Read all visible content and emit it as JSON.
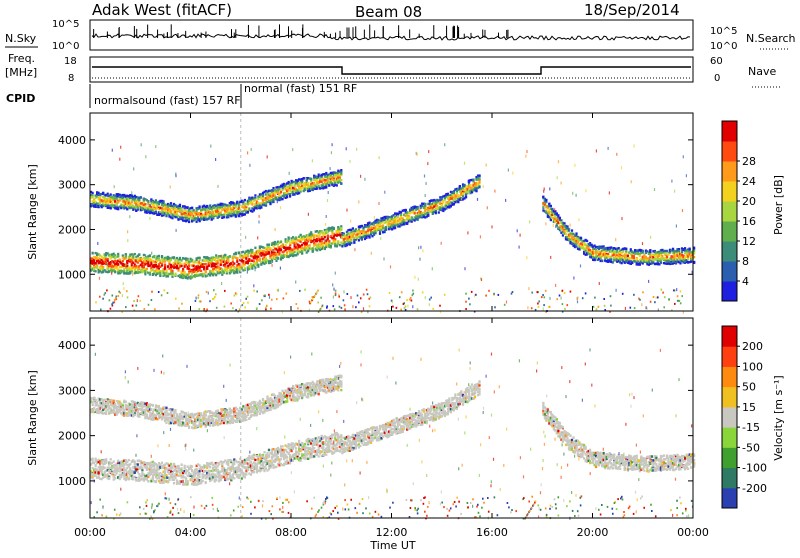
{
  "header": {
    "title": "Adak West (fitACF)",
    "beam": "Beam 08",
    "date": "18/Sep/2014"
  },
  "strip": {
    "nsky_label": "N.Sky",
    "nsearch_label": "N.Search",
    "freq_label_1": "Freq.",
    "freq_label_2": "[MHz]",
    "nave_label": "Nave",
    "cpid_label": "CPID",
    "noise_ticks": [
      "10^5",
      "10^0"
    ],
    "freq_ticks": [
      "18",
      "8"
    ],
    "nave_ticks": [
      "60",
      "0"
    ],
    "cpid_text_1": "normalsound (fast) 157 RF",
    "cpid_text_2": "normal (fast) 151 RF"
  },
  "chart_data": [
    {
      "type": "heatmap",
      "title": "",
      "xlabel": "Time UT",
      "ylabel": "Slant Range [km]",
      "xlim": [
        "00:00",
        "24:00"
      ],
      "ylim": [
        180,
        4600
      ],
      "x_ticks": [
        "00:00",
        "04:00",
        "08:00",
        "12:00",
        "16:00",
        "20:00",
        "00:00"
      ],
      "y_ticks": [
        1000,
        2000,
        3000,
        4000
      ],
      "colorbar": {
        "label": "Power [dB]",
        "ticks": [
          4,
          8,
          12,
          16,
          20,
          24,
          28
        ],
        "colors": [
          "#1f1fe0",
          "#2a5fb0",
          "#3c8c7a",
          "#5fb04c",
          "#a8d640",
          "#f2d21e",
          "#ff9a1a",
          "#ff4a10",
          "#e00000"
        ]
      },
      "bands": [
        {
          "name": "",
          "x": [
            0,
            2,
            4,
            6,
            8,
            10
          ],
          "y": [
            1300,
            1250,
            1150,
            1300,
            1650,
            1900
          ]
        },
        {
          "name": "",
          "x": [
            0,
            2,
            4,
            6,
            8,
            10
          ],
          "y": [
            2700,
            2600,
            2350,
            2500,
            2950,
            3200
          ]
        },
        {
          "name": "",
          "x": [
            10,
            12,
            14,
            15.5
          ],
          "y": [
            1800,
            2200,
            2600,
            3100
          ]
        },
        {
          "name": "",
          "x": [
            18,
            19,
            20,
            22,
            24
          ],
          "y": [
            2600,
            1900,
            1500,
            1400,
            1450
          ]
        }
      ]
    },
    {
      "type": "heatmap",
      "title": "",
      "xlabel": "Time UT",
      "ylabel": "Slant Range [km]",
      "xlim": [
        "00:00",
        "24:00"
      ],
      "ylim": [
        180,
        4600
      ],
      "x_ticks": [
        "00:00",
        "04:00",
        "08:00",
        "12:00",
        "16:00",
        "20:00",
        "00:00"
      ],
      "y_ticks": [
        1000,
        2000,
        3000,
        4000
      ],
      "colorbar": {
        "label": "Velocity [m s⁻¹]",
        "ticks": [
          200,
          100,
          50,
          15,
          -15,
          -50,
          -100,
          -200
        ],
        "colors": [
          "#2a3fb0",
          "#2f7a64",
          "#3fa02f",
          "#8ad63a",
          "#c8c8c0",
          "#f0c020",
          "#ff8a10",
          "#ff4010",
          "#e00000"
        ]
      },
      "bands": [
        {
          "name": "",
          "x": [
            0,
            2,
            4,
            6,
            8,
            10
          ],
          "y": [
            1300,
            1250,
            1150,
            1300,
            1650,
            1900
          ]
        },
        {
          "name": "",
          "x": [
            0,
            2,
            4,
            6,
            8,
            10
          ],
          "y": [
            2700,
            2600,
            2350,
            2500,
            2950,
            3200
          ]
        },
        {
          "name": "",
          "x": [
            10,
            12,
            14,
            15.5
          ],
          "y": [
            1800,
            2200,
            2600,
            3100
          ]
        },
        {
          "name": "",
          "x": [
            18,
            19,
            20,
            22,
            24
          ],
          "y": [
            2600,
            1900,
            1500,
            1400,
            1450
          ]
        }
      ]
    }
  ]
}
